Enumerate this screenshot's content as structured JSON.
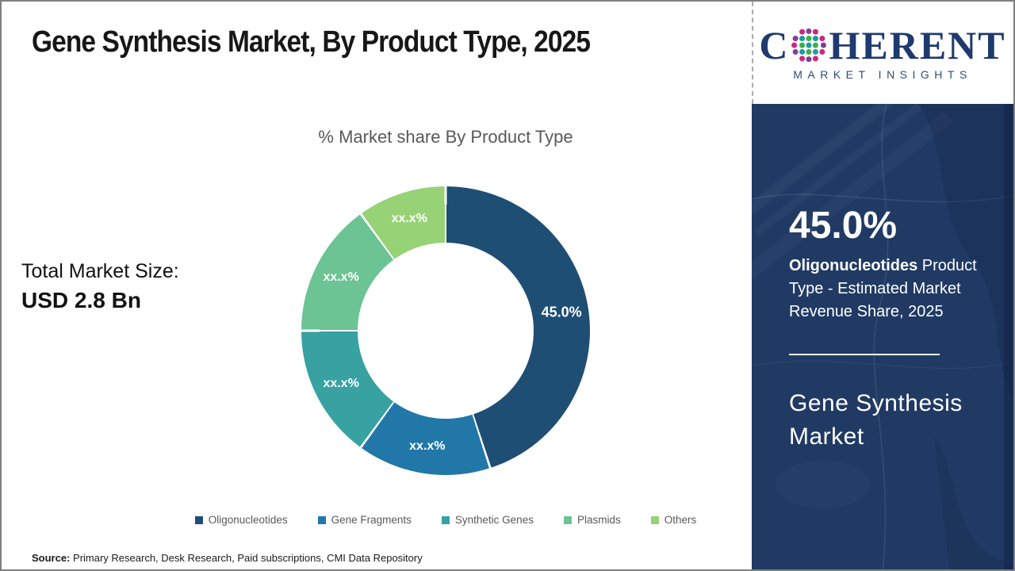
{
  "header": {
    "title": "Gene Synthesis Market, By Product Type, 2025"
  },
  "logo": {
    "word_start": "C",
    "word_end": "HERENT",
    "tagline": "MARKET INSIGHTS",
    "globe_icon_colors": {
      "magenta": "#cf2680",
      "purple": "#7e3f98",
      "teal": "#159ea0",
      "green": "#3fae49"
    },
    "text_color": "#1e3a6e"
  },
  "left_panel": {
    "total_label": "Total Market Size:",
    "total_value": "USD 2.8 Bn"
  },
  "chart_data": {
    "type": "pie",
    "donut": true,
    "title": "% Market share By Product Type",
    "categories": [
      "Oligonucleotides",
      "Gene Fragments",
      "Synthetic Genes",
      "Plasmids",
      "Others"
    ],
    "values": [
      45,
      15,
      15,
      15,
      10
    ],
    "labels": [
      "45.0%",
      "xx.x%",
      "xx.x%",
      "xx.x%",
      "xx.x%"
    ],
    "colors": [
      "#1f4e74",
      "#2178a8",
      "#38a1a1",
      "#6cc393",
      "#97d277"
    ],
    "start_angle_deg": 0,
    "direction": "clockwise",
    "legend_position": "bottom",
    "label_color": "#ffffff"
  },
  "sidebar": {
    "background_color": "#203a64",
    "stat_value": "45.0%",
    "stat_highlight": "Oligonucleotides",
    "stat_rest": " Product Type - Estimated Market Revenue Share, 2025",
    "report_title": "Gene Synthesis Market"
  },
  "footer": {
    "source_label": "Source:",
    "source_text": " Primary Research, Desk Research, Paid subscriptions, CMI Data Repository"
  }
}
